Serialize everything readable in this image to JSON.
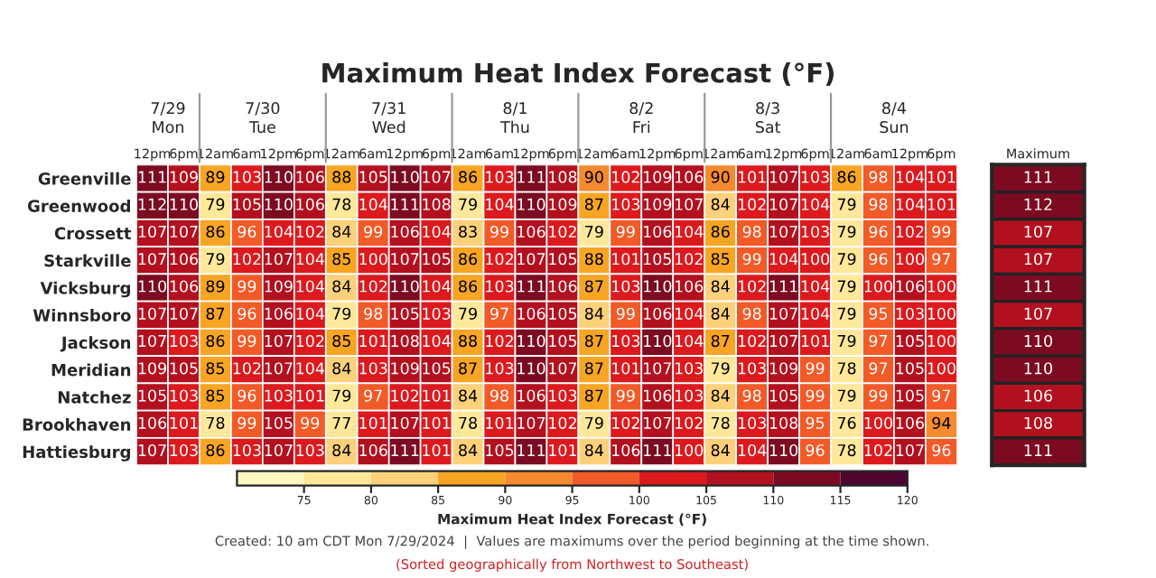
{
  "chart_data": [
    {
      "type": "heatmap",
      "title": "Maximum Heat Index Forecast (°F)",
      "categories": [
        "12pm",
        "6pm",
        "12am",
        "6am",
        "12pm",
        "6pm",
        "12am",
        "6am",
        "12pm",
        "6pm",
        "12am",
        "6am",
        "12pm",
        "6pm",
        "12am",
        "6am",
        "12pm",
        "6pm",
        "12am",
        "6am",
        "12pm",
        "6pm",
        "12am",
        "6am",
        "12pm",
        "6pm"
      ],
      "y_categories": [
        "Greenville",
        "Greenwood",
        "Crossett",
        "Starkville",
        "Vicksburg",
        "Winnsboro",
        "Jackson",
        "Meridian",
        "Natchez",
        "Brookhaven",
        "Hattiesburg"
      ],
      "cells": [
        [
          111,
          109,
          89,
          103,
          110,
          106,
          88,
          105,
          110,
          107,
          86,
          103,
          111,
          108,
          90,
          102,
          109,
          106,
          90,
          101,
          107,
          103,
          86,
          98,
          104,
          101
        ],
        [
          112,
          110,
          79,
          105,
          110,
          106,
          78,
          104,
          111,
          108,
          79,
          104,
          110,
          109,
          87,
          103,
          109,
          107,
          84,
          102,
          107,
          104,
          79,
          98,
          104,
          101
        ],
        [
          107,
          107,
          86,
          96,
          104,
          102,
          84,
          99,
          106,
          104,
          83,
          99,
          106,
          102,
          79,
          99,
          106,
          104,
          86,
          98,
          107,
          103,
          79,
          96,
          102,
          99
        ],
        [
          107,
          106,
          79,
          102,
          107,
          104,
          85,
          100,
          107,
          105,
          86,
          102,
          107,
          105,
          88,
          101,
          105,
          102,
          85,
          99,
          104,
          100,
          79,
          96,
          100,
          97
        ],
        [
          110,
          106,
          89,
          99,
          109,
          104,
          84,
          102,
          110,
          104,
          86,
          103,
          111,
          106,
          87,
          103,
          110,
          106,
          84,
          102,
          111,
          104,
          79,
          100,
          106,
          100
        ],
        [
          107,
          107,
          87,
          96,
          106,
          104,
          79,
          98,
          105,
          103,
          79,
          97,
          106,
          105,
          84,
          99,
          106,
          104,
          84,
          98,
          107,
          104,
          79,
          95,
          103,
          100
        ],
        [
          107,
          103,
          86,
          99,
          107,
          102,
          85,
          101,
          108,
          104,
          88,
          102,
          110,
          105,
          87,
          103,
          110,
          104,
          87,
          102,
          107,
          101,
          79,
          97,
          105,
          100
        ],
        [
          109,
          105,
          85,
          102,
          107,
          104,
          84,
          103,
          109,
          105,
          87,
          103,
          110,
          107,
          87,
          101,
          107,
          103,
          79,
          103,
          109,
          99,
          78,
          97,
          105,
          100
        ],
        [
          105,
          103,
          85,
          96,
          103,
          101,
          79,
          97,
          102,
          101,
          84,
          98,
          106,
          103,
          87,
          99,
          106,
          103,
          84,
          98,
          105,
          99,
          79,
          99,
          105,
          97
        ],
        [
          106,
          101,
          78,
          99,
          105,
          99,
          77,
          101,
          107,
          101,
          78,
          101,
          107,
          102,
          79,
          102,
          107,
          102,
          78,
          103,
          108,
          95,
          76,
          100,
          106,
          94
        ],
        [
          107,
          103,
          86,
          103,
          107,
          103,
          84,
          106,
          111,
          101,
          84,
          105,
          111,
          101,
          84,
          106,
          111,
          100,
          84,
          104,
          110,
          96,
          78,
          102,
          107,
          96
        ]
      ],
      "clim": [
        70,
        120
      ],
      "cticks": [
        75,
        80,
        85,
        90,
        95,
        100,
        105,
        110,
        115,
        120
      ],
      "clabel": "Maximum Heat Index Forecast (°F)",
      "data_labels": true,
      "annotations": [
        "7/29\nMon",
        "7/30\nTue",
        "7/31\nWed",
        "8/1\nThu",
        "8/2\nFri",
        "8/3\nSat",
        "8/4\nSun",
        "Created: 10 am CDT Mon 7/29/2024  |  Values are maximums over the period beginning at the time shown.",
        "(Sorted geographically from Northwest to Southeast)"
      ]
    },
    {
      "type": "heatmap",
      "categories": [
        "Maximum"
      ],
      "tick_labels": "x",
      "data_labels": true,
      "y_categories": [
        null,
        null,
        null,
        null,
        null,
        null,
        null,
        null,
        null,
        null,
        null
      ],
      "cells": [
        [
          111
        ],
        [
          112
        ],
        [
          107
        ],
        [
          107
        ],
        [
          111
        ],
        [
          107
        ],
        [
          110
        ],
        [
          110
        ],
        [
          106
        ],
        [
          108
        ],
        [
          111
        ]
      ]
    }
  ]
}
